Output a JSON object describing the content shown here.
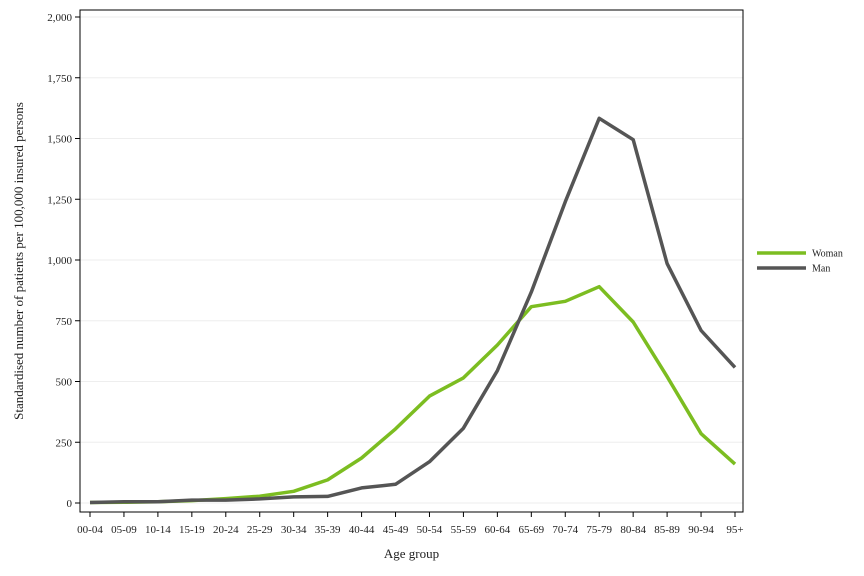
{
  "chart_data": {
    "type": "line",
    "xlabel": "Age group",
    "ylabel": "Standardised number of patients per 100,000 insured persons",
    "ylim": [
      0,
      2000
    ],
    "yticks": [
      0,
      250,
      500,
      750,
      1000,
      1250,
      1500,
      1750,
      2000
    ],
    "ytick_labels": [
      "0",
      "250",
      "500",
      "750",
      "1,000",
      "1,250",
      "1,500",
      "1,750",
      "2,000"
    ],
    "grid": true,
    "legend_position": "right",
    "categories": [
      "00-04",
      "05-09",
      "10-14",
      "15-19",
      "20-24",
      "25-29",
      "30-34",
      "35-39",
      "40-44",
      "45-49",
      "50-54",
      "55-59",
      "60-64",
      "65-69",
      "70-74",
      "75-79",
      "80-84",
      "85-89",
      "90-94",
      "95+"
    ],
    "series": [
      {
        "name": "Woman",
        "color": "#7cbd21",
        "values": [
          2,
          3,
          5,
          10,
          18,
          28,
          48,
          95,
          185,
          305,
          440,
          515,
          650,
          808,
          830,
          890,
          745,
          520,
          285,
          160
        ]
      },
      {
        "name": "Man",
        "color": "#555555",
        "values": [
          2,
          5,
          5,
          12,
          12,
          17,
          25,
          27,
          62,
          77,
          170,
          308,
          545,
          868,
          1240,
          1583,
          1495,
          985,
          710,
          558
        ]
      }
    ]
  }
}
